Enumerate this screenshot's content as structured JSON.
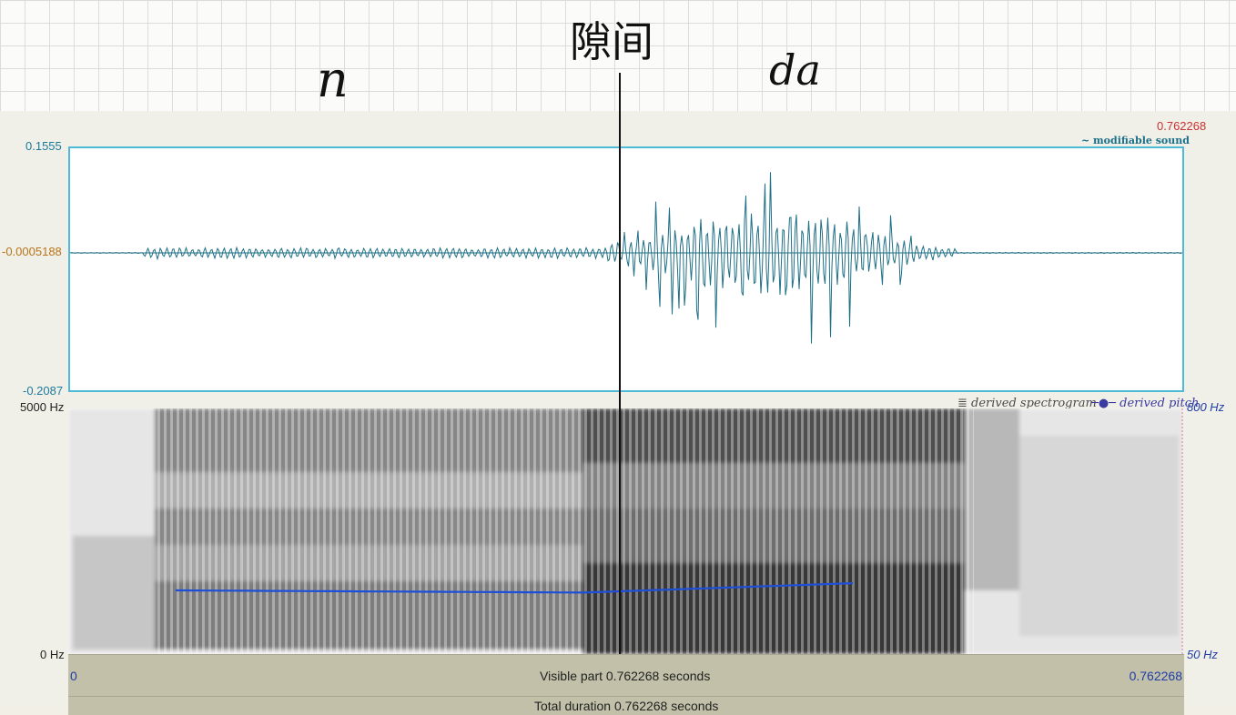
{
  "annotations": {
    "boundary": "隙间",
    "left_segment": "n",
    "right_segment": "da"
  },
  "sound": {
    "title": "~ modifiable sound",
    "duration_top": "0.762268",
    "y_max": "0.1555",
    "y_mid": "-0.0005188",
    "y_min": "-0.2087"
  },
  "spectrogram": {
    "legend_spec": "derived spectrogram",
    "legend_pitch": "derived pitch",
    "freq_max": "5000 Hz",
    "freq_min": "0 Hz",
    "pitch_max": "800 Hz",
    "pitch_min": "50 Hz"
  },
  "timebar": {
    "start": "0",
    "visible": "Visible part 0.762268 seconds",
    "end": "0.762268",
    "total": "Total duration 0.762268 seconds"
  },
  "colors": {
    "waveform": "#1f6f86",
    "pitch": "#1d4fd8",
    "frame": "#4fb9d8"
  }
}
